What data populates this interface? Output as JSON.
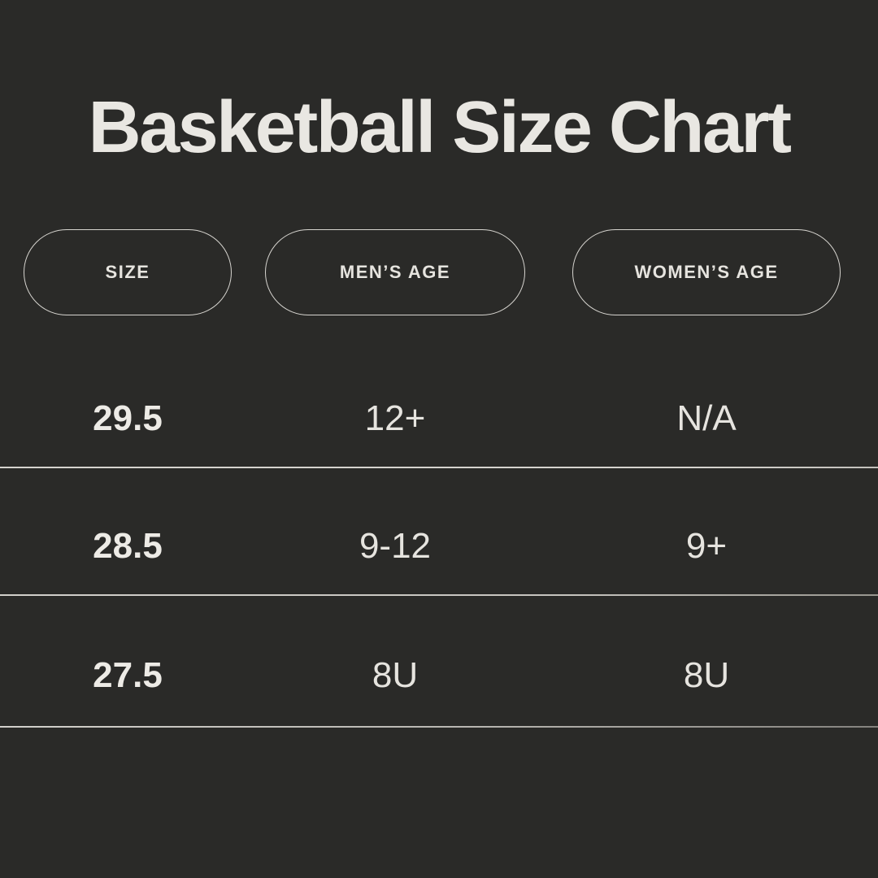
{
  "theme": {
    "background": "#2a2a28",
    "title_color": "#e9e7e2",
    "text_color": "#e6e4df",
    "bold_text_color": "#edebe6",
    "pill_border_color": "#d6d4cf",
    "divider_color": "#d2d0cb"
  },
  "header": {
    "title": "Basketball Size Chart"
  },
  "table": {
    "columns": [
      {
        "id": "size",
        "label": "SIZE"
      },
      {
        "id": "mens_age",
        "label": "MEN’S AGE"
      },
      {
        "id": "womens_age",
        "label": "WOMEN’S AGE"
      }
    ],
    "rows": [
      {
        "size": "29.5",
        "mens_age": "12+",
        "womens_age": "N/A"
      },
      {
        "size": "28.5",
        "mens_age": "9-12",
        "womens_age": "9+"
      },
      {
        "size": "27.5",
        "mens_age": "8U",
        "womens_age": "8U"
      }
    ]
  },
  "chart_data": {
    "type": "table",
    "title": "Basketball Size Chart",
    "columns": [
      "Size",
      "Men’s Age",
      "Women’s Age"
    ],
    "rows": [
      [
        "29.5",
        "12+",
        "N/A"
      ],
      [
        "28.5",
        "9-12",
        "9+"
      ],
      [
        "27.5",
        "8U",
        "8U"
      ]
    ]
  }
}
